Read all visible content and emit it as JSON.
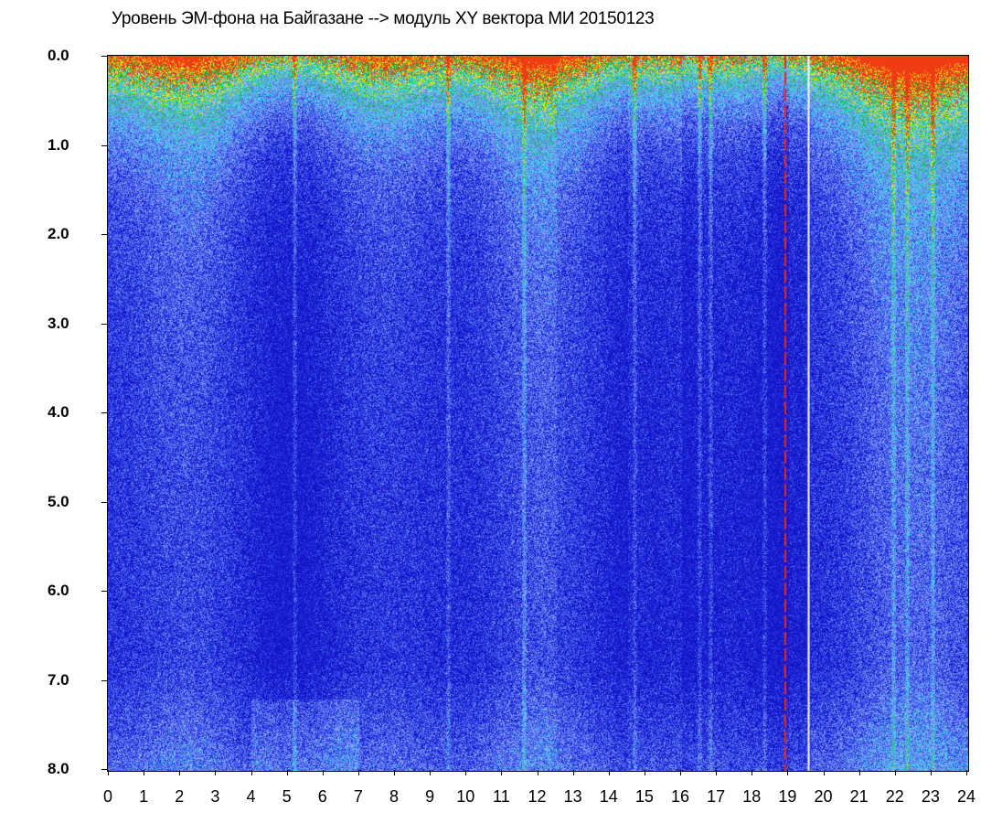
{
  "chart_data": {
    "type": "heatmap",
    "title": "Уровень ЭМ-фона на Байгазане  -->  модуль XY вектора МИ  20150123",
    "xlabel": "",
    "ylabel": "",
    "x_range": [
      0,
      24
    ],
    "y_range": [
      0,
      8
    ],
    "y_inverted": true,
    "x_ticks": [
      "0",
      "1",
      "2",
      "3",
      "4",
      "5",
      "6",
      "7",
      "8",
      "9",
      "10",
      "11",
      "12",
      "13",
      "14",
      "15",
      "16",
      "17",
      "18",
      "19",
      "20",
      "21",
      "22",
      "23",
      "24"
    ],
    "y_ticks": [
      "0.0",
      "1.0",
      "2.0",
      "3.0",
      "4.0",
      "5.0",
      "6.0",
      "7.0",
      "8.0"
    ],
    "colormap": [
      "#1414c8",
      "#2a3ee6",
      "#5a78f0",
      "#8aa0f5",
      "#3cd8e8",
      "#1fb850",
      "#f5e614",
      "#f03c14"
    ],
    "markers": [
      {
        "x": 18.9,
        "color": "#e8281e",
        "style": "dashed"
      },
      {
        "x": 19.55,
        "color": "#ffffff",
        "style": "solid"
      }
    ],
    "grid": false
  }
}
